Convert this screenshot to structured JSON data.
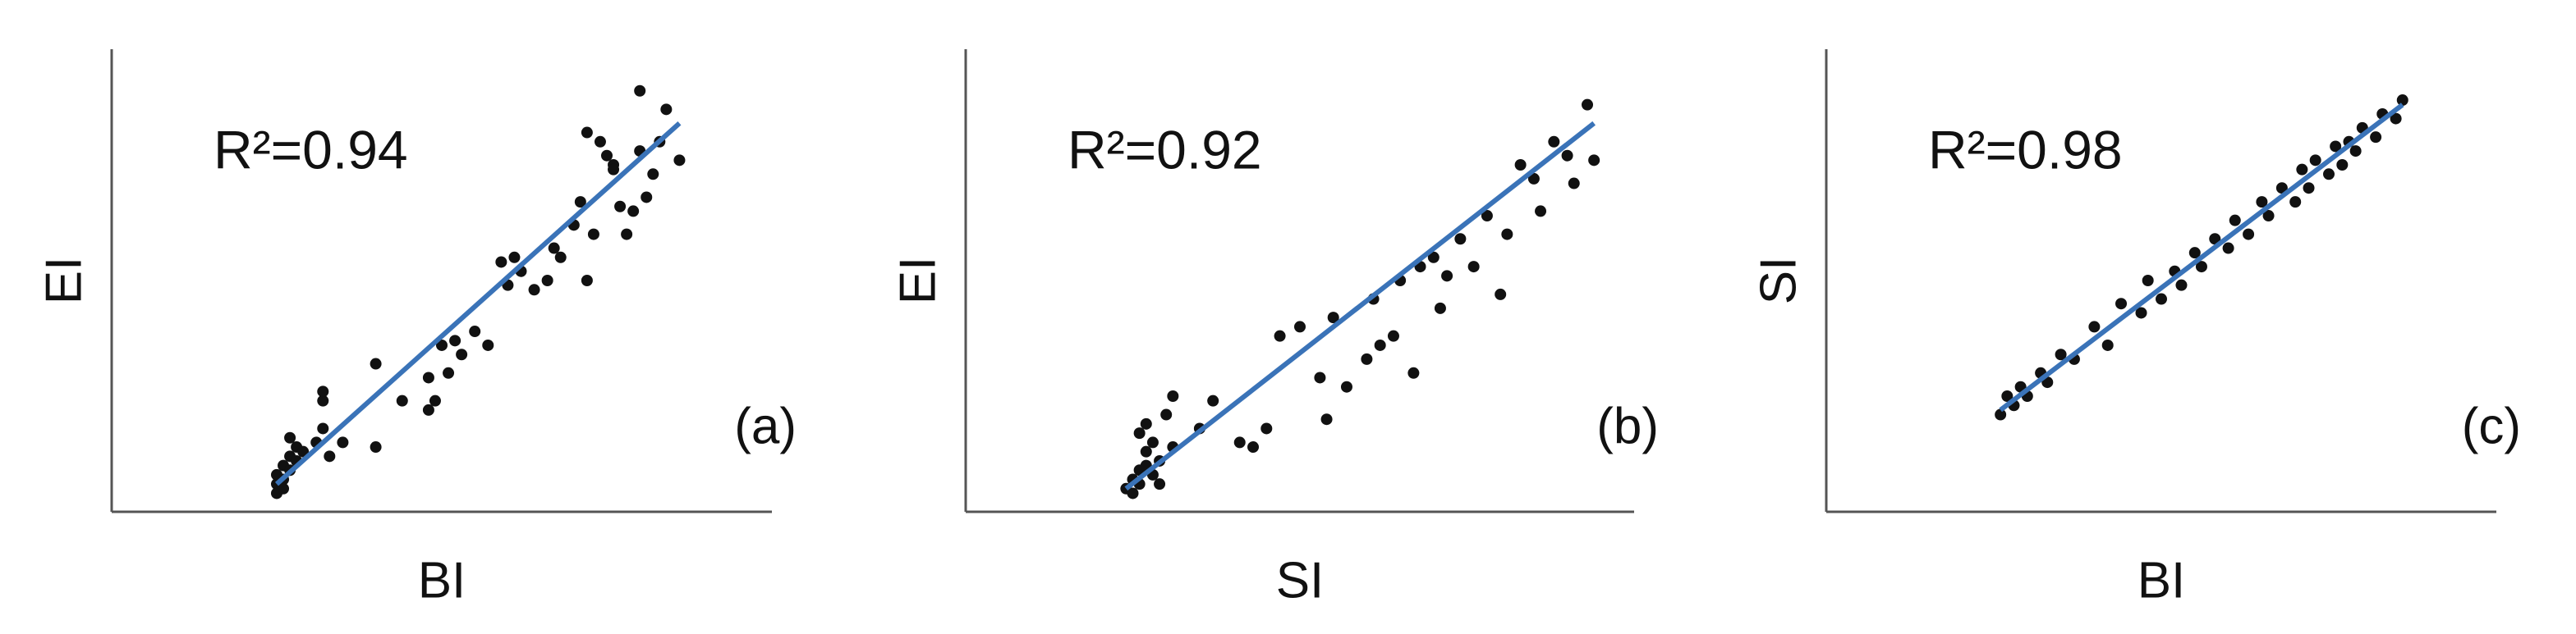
{
  "chart_data": [
    {
      "type": "scatter",
      "xlabel": "BI",
      "ylabel": "EI",
      "annotation": "R²=0.94",
      "panel_label": "(a)",
      "xlim": [
        0,
        1
      ],
      "ylim": [
        0,
        1
      ],
      "color": "#111111",
      "x": [
        0.25,
        0.25,
        0.26,
        0.26,
        0.27,
        0.27,
        0.28,
        0.28,
        0.25,
        0.26,
        0.27,
        0.29,
        0.31,
        0.32,
        0.32,
        0.32,
        0.33,
        0.35,
        0.4,
        0.4,
        0.44,
        0.48,
        0.48,
        0.49,
        0.5,
        0.51,
        0.52,
        0.53,
        0.55,
        0.57,
        0.59,
        0.6,
        0.61,
        0.62,
        0.64,
        0.66,
        0.67,
        0.68,
        0.7,
        0.71,
        0.72,
        0.73,
        0.74,
        0.75,
        0.76,
        0.77,
        0.78,
        0.79,
        0.8,
        0.81,
        0.82,
        0.83,
        0.84,
        0.86,
        0.72,
        0.76,
        0.8
      ],
      "y": [
        0.06,
        0.08,
        0.07,
        0.1,
        0.09,
        0.12,
        0.11,
        0.14,
        0.04,
        0.05,
        0.16,
        0.13,
        0.15,
        0.18,
        0.24,
        0.26,
        0.12,
        0.15,
        0.14,
        0.32,
        0.24,
        0.22,
        0.29,
        0.24,
        0.36,
        0.3,
        0.37,
        0.34,
        0.39,
        0.36,
        0.54,
        0.49,
        0.55,
        0.52,
        0.48,
        0.5,
        0.57,
        0.55,
        0.62,
        0.67,
        0.5,
        0.6,
        0.8,
        0.77,
        0.75,
        0.66,
        0.6,
        0.65,
        0.78,
        0.68,
        0.73,
        0.8,
        0.87,
        0.76,
        0.82,
        0.74,
        0.91
      ],
      "trend": {
        "color": "#3a73b8",
        "x": [
          0.25,
          0.86
        ],
        "y": [
          0.06,
          0.84
        ]
      }
    },
    {
      "type": "scatter",
      "xlabel": "SI",
      "ylabel": "EI",
      "annotation": "R²=0.92",
      "panel_label": "(b)",
      "xlim": [
        0,
        1
      ],
      "ylim": [
        0,
        1
      ],
      "color": "#111111",
      "x": [
        0.24,
        0.25,
        0.25,
        0.26,
        0.26,
        0.27,
        0.27,
        0.28,
        0.28,
        0.29,
        0.26,
        0.27,
        0.29,
        0.3,
        0.31,
        0.31,
        0.35,
        0.37,
        0.41,
        0.43,
        0.45,
        0.47,
        0.5,
        0.53,
        0.54,
        0.55,
        0.57,
        0.6,
        0.61,
        0.62,
        0.64,
        0.65,
        0.67,
        0.68,
        0.7,
        0.71,
        0.72,
        0.74,
        0.76,
        0.78,
        0.8,
        0.81,
        0.83,
        0.85,
        0.86,
        0.88,
        0.9,
        0.91,
        0.93,
        0.94
      ],
      "y": [
        0.05,
        0.07,
        0.04,
        0.09,
        0.06,
        0.1,
        0.13,
        0.08,
        0.15,
        0.11,
        0.17,
        0.19,
        0.06,
        0.21,
        0.14,
        0.25,
        0.18,
        0.24,
        0.15,
        0.14,
        0.18,
        0.38,
        0.4,
        0.29,
        0.2,
        0.42,
        0.27,
        0.33,
        0.46,
        0.36,
        0.38,
        0.5,
        0.3,
        0.53,
        0.55,
        0.44,
        0.51,
        0.59,
        0.53,
        0.64,
        0.47,
        0.6,
        0.75,
        0.72,
        0.65,
        0.8,
        0.77,
        0.71,
        0.88,
        0.76
      ],
      "trend": {
        "color": "#3a73b8",
        "x": [
          0.24,
          0.94
        ],
        "y": [
          0.05,
          0.84
        ]
      }
    },
    {
      "type": "scatter",
      "xlabel": "BI",
      "ylabel": "SI",
      "annotation": "R²=0.98",
      "panel_label": "(c)",
      "xlim": [
        0,
        1
      ],
      "ylim": [
        0,
        1
      ],
      "color": "#111111",
      "x": [
        0.26,
        0.27,
        0.28,
        0.29,
        0.3,
        0.32,
        0.33,
        0.35,
        0.37,
        0.4,
        0.42,
        0.44,
        0.47,
        0.48,
        0.5,
        0.52,
        0.53,
        0.55,
        0.56,
        0.58,
        0.6,
        0.61,
        0.63,
        0.65,
        0.66,
        0.68,
        0.7,
        0.71,
        0.72,
        0.73,
        0.75,
        0.76,
        0.77,
        0.78,
        0.79,
        0.8,
        0.82,
        0.83,
        0.85,
        0.86
      ],
      "y": [
        0.21,
        0.25,
        0.23,
        0.27,
        0.25,
        0.3,
        0.28,
        0.34,
        0.33,
        0.4,
        0.36,
        0.45,
        0.43,
        0.5,
        0.46,
        0.52,
        0.49,
        0.56,
        0.53,
        0.59,
        0.57,
        0.63,
        0.6,
        0.67,
        0.64,
        0.7,
        0.67,
        0.74,
        0.7,
        0.76,
        0.73,
        0.79,
        0.75,
        0.8,
        0.78,
        0.83,
        0.81,
        0.86,
        0.85,
        0.89
      ],
      "trend": {
        "color": "#3a73b8",
        "x": [
          0.26,
          0.86
        ],
        "y": [
          0.22,
          0.88
        ]
      }
    }
  ]
}
